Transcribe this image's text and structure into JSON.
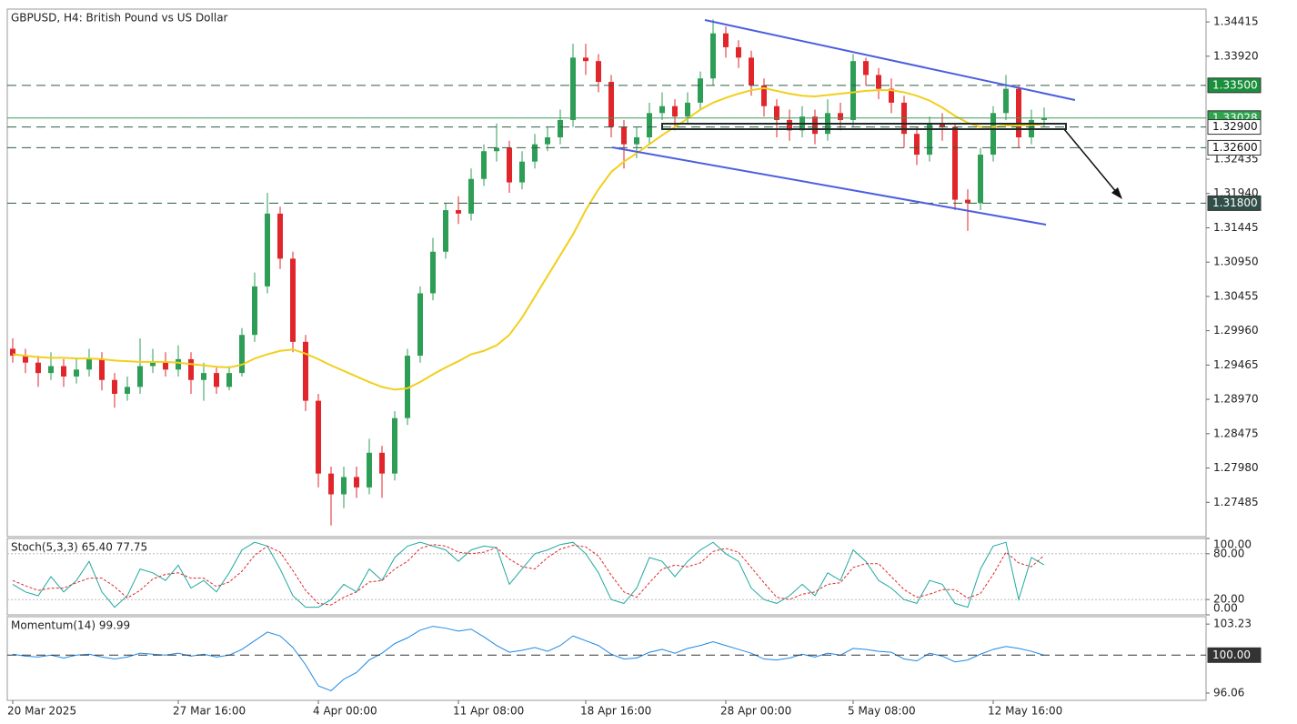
{
  "chart_data": [
    {
      "type": "candlestick",
      "title": "GBPUSD, H4:  British Pound vs US Dollar",
      "categories": [
        "20 Mar 2025",
        null,
        null,
        null,
        null,
        null,
        null,
        null,
        null,
        null,
        null,
        null,
        null,
        "27 Mar 16:00",
        null,
        null,
        null,
        null,
        null,
        null,
        null,
        null,
        null,
        null,
        "4 Apr 00:00",
        null,
        null,
        null,
        null,
        null,
        null,
        null,
        null,
        null,
        null,
        "11 Apr 08:00",
        null,
        null,
        null,
        null,
        null,
        null,
        null,
        null,
        null,
        "18 Apr 16:00",
        null,
        null,
        null,
        null,
        null,
        null,
        null,
        null,
        null,
        null,
        "28 Apr 00:00",
        null,
        null,
        null,
        null,
        null,
        null,
        null,
        null,
        null,
        "5 May 08:00",
        null,
        null,
        null,
        null,
        null,
        null,
        null,
        null,
        null,
        null,
        "12 May 16:00",
        null,
        null,
        null,
        null
      ],
      "open": [
        1.297,
        1.296,
        1.295,
        1.2935,
        1.2945,
        1.293,
        1.294,
        1.2955,
        1.2925,
        1.2905,
        1.2915,
        1.2945,
        1.295,
        1.294,
        1.2955,
        1.2925,
        1.2935,
        1.2915,
        1.2935,
        1.299,
        1.306,
        1.3165,
        1.31,
        1.298,
        1.2895,
        1.279,
        1.276,
        1.2785,
        1.277,
        1.282,
        1.279,
        1.287,
        1.296,
        1.305,
        1.311,
        1.317,
        1.3165,
        1.3215,
        1.3255,
        1.326,
        1.321,
        1.324,
        1.3265,
        1.3275,
        1.33,
        1.339,
        1.3385,
        1.3355,
        1.329,
        1.3265,
        1.3275,
        1.331,
        1.332,
        1.3305,
        1.3325,
        1.336,
        1.3425,
        1.3405,
        1.339,
        1.335,
        1.332,
        1.33,
        1.3285,
        1.3305,
        1.328,
        1.331,
        1.33,
        1.3385,
        1.3365,
        1.3345,
        1.3325,
        1.328,
        1.325,
        1.3295,
        1.329,
        1.3185,
        1.318,
        1.325,
        1.331,
        1.3345,
        1.3275,
        1.33
      ],
      "high": [
        1.2985,
        1.297,
        1.296,
        1.2965,
        1.2955,
        1.2955,
        1.297,
        1.2965,
        1.2935,
        1.293,
        1.2985,
        1.297,
        1.2965,
        1.2975,
        1.2965,
        1.295,
        1.2945,
        1.2945,
        1.3,
        1.308,
        1.3195,
        1.3175,
        1.311,
        1.299,
        1.2905,
        1.28,
        1.28,
        1.28,
        1.284,
        1.283,
        1.288,
        1.297,
        1.306,
        1.313,
        1.318,
        1.319,
        1.323,
        1.3265,
        1.3295,
        1.327,
        1.3255,
        1.328,
        1.329,
        1.3315,
        1.341,
        1.341,
        1.3395,
        1.3365,
        1.33,
        1.329,
        1.3325,
        1.334,
        1.333,
        1.334,
        1.337,
        1.3445,
        1.3435,
        1.3415,
        1.34,
        1.336,
        1.333,
        1.3315,
        1.332,
        1.3315,
        1.333,
        1.3325,
        1.3395,
        1.339,
        1.3375,
        1.336,
        1.3335,
        1.329,
        1.3305,
        1.331,
        1.3295,
        1.32,
        1.326,
        1.332,
        1.3365,
        1.335,
        1.3315,
        1.3318
      ],
      "low": [
        1.295,
        1.2935,
        1.2915,
        1.2925,
        1.2915,
        1.292,
        1.293,
        1.291,
        1.2885,
        1.2895,
        1.2905,
        1.2935,
        1.293,
        1.293,
        1.2905,
        1.2895,
        1.2905,
        1.291,
        1.293,
        1.298,
        1.305,
        1.3085,
        1.2965,
        1.288,
        1.277,
        1.2715,
        1.274,
        1.2755,
        1.276,
        1.2755,
        1.278,
        1.286,
        1.295,
        1.304,
        1.31,
        1.315,
        1.3155,
        1.3205,
        1.324,
        1.3195,
        1.32,
        1.323,
        1.3255,
        1.3265,
        1.329,
        1.3365,
        1.334,
        1.3275,
        1.323,
        1.3245,
        1.3265,
        1.33,
        1.3285,
        1.3295,
        1.3315,
        1.335,
        1.339,
        1.3375,
        1.3335,
        1.3305,
        1.3275,
        1.327,
        1.3275,
        1.3265,
        1.327,
        1.3285,
        1.329,
        1.335,
        1.333,
        1.331,
        1.326,
        1.3235,
        1.324,
        1.327,
        1.317,
        1.314,
        1.317,
        1.324,
        1.33,
        1.326,
        1.3265,
        1.329
      ],
      "close": [
        1.296,
        1.295,
        1.2935,
        1.2945,
        1.293,
        1.294,
        1.2955,
        1.2925,
        1.2905,
        1.2915,
        1.2945,
        1.295,
        1.294,
        1.2955,
        1.2925,
        1.2935,
        1.2915,
        1.2935,
        1.299,
        1.306,
        1.3165,
        1.31,
        1.298,
        1.2895,
        1.279,
        1.276,
        1.2785,
        1.277,
        1.282,
        1.279,
        1.287,
        1.296,
        1.305,
        1.311,
        1.317,
        1.3165,
        1.3215,
        1.3255,
        1.326,
        1.321,
        1.324,
        1.3265,
        1.3275,
        1.33,
        1.339,
        1.3385,
        1.3355,
        1.329,
        1.3265,
        1.3275,
        1.331,
        1.332,
        1.3305,
        1.3325,
        1.336,
        1.3425,
        1.3405,
        1.339,
        1.335,
        1.332,
        1.33,
        1.3285,
        1.3305,
        1.328,
        1.331,
        1.33,
        1.3385,
        1.3365,
        1.3345,
        1.3325,
        1.328,
        1.325,
        1.3295,
        1.329,
        1.3185,
        1.318,
        1.325,
        1.331,
        1.3345,
        1.3275,
        1.33,
        1.3303
      ],
      "up_color": "#2e9e56",
      "down_color": "#e0262b",
      "overlay": {
        "color": "#f2cf1d",
        "values": [
          1.2962,
          1.296,
          1.2958,
          1.2957,
          1.2957,
          1.2956,
          1.2956,
          1.2955,
          1.2953,
          1.2952,
          1.2951,
          1.2951,
          1.2951,
          1.295,
          1.2948,
          1.2946,
          1.2944,
          1.2943,
          1.2947,
          1.2956,
          1.2962,
          1.2967,
          1.2969,
          1.2963,
          1.2955,
          1.2946,
          1.2938,
          1.293,
          1.2922,
          1.2915,
          1.2911,
          1.2913,
          1.2922,
          1.2933,
          1.2943,
          1.2952,
          1.2962,
          1.2967,
          1.2975,
          1.299,
          1.3015,
          1.3045,
          1.3075,
          1.3105,
          1.3135,
          1.317,
          1.32,
          1.3225,
          1.324,
          1.3252,
          1.3265,
          1.3278,
          1.329,
          1.3302,
          1.3315,
          1.3325,
          1.3332,
          1.3338,
          1.3343,
          1.3346,
          1.3342,
          1.3338,
          1.3335,
          1.3334,
          1.3336,
          1.3338,
          1.334,
          1.3342,
          1.3343,
          1.3343,
          1.334,
          1.3335,
          1.3328,
          1.3318,
          1.3306,
          1.3296,
          1.329,
          1.329,
          1.3292,
          1.3292,
          1.3293,
          1.3294
        ]
      },
      "ylim": [
        1.2699,
        1.346
      ],
      "yticks": [
        {
          "value": 1.34415,
          "label": "1.34415"
        },
        {
          "value": 1.3392,
          "label": "1.33920"
        },
        {
          "value": 1.32435,
          "label": "1.32435"
        },
        {
          "value": 1.3194,
          "label": "1.31940"
        },
        {
          "value": 1.31445,
          "label": "1.31445"
        },
        {
          "value": 1.3095,
          "label": "1.30950"
        },
        {
          "value": 1.30455,
          "label": "1.30455"
        },
        {
          "value": 1.2996,
          "label": "1.29960"
        },
        {
          "value": 1.29465,
          "label": "1.29465"
        },
        {
          "value": 1.2897,
          "label": "1.28970"
        },
        {
          "value": 1.28475,
          "label": "1.28475"
        },
        {
          "value": 1.2798,
          "label": "1.27980"
        },
        {
          "value": 1.27485,
          "label": "1.27485"
        }
      ],
      "grid": false,
      "levels": [
        {
          "value": 1.33028,
          "label": "1.33028",
          "style": "solid",
          "color": "#3a9a5a",
          "label_bg": "#2ea44f",
          "label_color": "#ffffff"
        },
        {
          "value": 1.335,
          "label": "1.33500",
          "style": "dashed",
          "color": "#2f5e44",
          "label_bg": "#1a8f3c",
          "label_color": "#ffffff"
        },
        {
          "value": 1.329,
          "label": "1.32900",
          "style": "dashed",
          "color": "#2f5e44",
          "label_bg": "#ffffff",
          "label_color": "#111111"
        },
        {
          "value": 1.326,
          "label": "1.32600",
          "style": "dashed",
          "color": "#2f5e44",
          "label_bg": "#ffffff",
          "label_color": "#111111"
        },
        {
          "value": 1.318,
          "label": "1.31800",
          "style": "dashed",
          "color": "#2f5e44",
          "label_bg": "#2f4f48",
          "label_color": "#ffffff"
        }
      ]
    },
    {
      "type": "line",
      "title": "Stoch(5,3,3) 65.40 77.75",
      "series": [
        {
          "color": "#20a8a0",
          "dash": false,
          "values": [
            40,
            30,
            25,
            50,
            30,
            45,
            70,
            30,
            10,
            25,
            60,
            55,
            45,
            65,
            35,
            45,
            30,
            55,
            85,
            95,
            90,
            60,
            25,
            10,
            10,
            20,
            40,
            30,
            60,
            45,
            75,
            90,
            95,
            90,
            85,
            70,
            85,
            90,
            88,
            40,
            60,
            80,
            85,
            92,
            95,
            80,
            55,
            20,
            15,
            35,
            75,
            70,
            50,
            70,
            85,
            95,
            80,
            70,
            35,
            20,
            15,
            25,
            40,
            25,
            55,
            45,
            85,
            70,
            45,
            35,
            20,
            15,
            45,
            40,
            15,
            10,
            60,
            90,
            95,
            20,
            75,
            65.4
          ]
        },
        {
          "color": "#e0262b",
          "dash": true,
          "values": [
            45,
            38,
            32,
            35,
            35,
            42,
            48,
            48,
            37,
            22,
            32,
            47,
            53,
            55,
            48,
            48,
            37,
            43,
            57,
            78,
            90,
            82,
            58,
            32,
            15,
            13,
            23,
            30,
            43,
            45,
            60,
            70,
            87,
            92,
            90,
            82,
            80,
            82,
            88,
            73,
            63,
            60,
            75,
            86,
            91,
            89,
            77,
            52,
            30,
            23,
            42,
            60,
            65,
            63,
            68,
            83,
            87,
            82,
            62,
            42,
            23,
            20,
            27,
            30,
            40,
            42,
            62,
            67,
            67,
            50,
            33,
            23,
            27,
            33,
            33,
            22,
            28,
            53,
            82,
            68,
            63,
            77.75
          ]
        }
      ],
      "ylim": [
        0,
        100
      ],
      "yticks": [
        {
          "value": 100,
          "label": "100.00"
        },
        {
          "value": 80,
          "label": "80.00"
        },
        {
          "value": 20,
          "label": "20.00"
        },
        {
          "value": 0,
          "label": "0.00"
        }
      ],
      "grid": true
    },
    {
      "type": "line",
      "title": "Momentum(14) 99.99",
      "series": [
        {
          "color": "#1e88e5",
          "dash": false,
          "values": [
            100.1,
            99.9,
            99.8,
            100.0,
            99.7,
            100.0,
            100.1,
            99.8,
            99.6,
            99.8,
            100.2,
            100.1,
            100.0,
            100.2,
            99.9,
            100.1,
            99.8,
            100.0,
            100.6,
            101.5,
            102.4,
            102.0,
            100.8,
            99.0,
            96.8,
            96.3,
            97.5,
            98.2,
            99.5,
            100.2,
            101.2,
            101.8,
            102.6,
            103.0,
            102.8,
            102.5,
            102.7,
            101.9,
            101.0,
            100.3,
            100.5,
            100.8,
            100.4,
            101.0,
            102.0,
            101.5,
            101.0,
            100.1,
            99.6,
            99.7,
            100.3,
            100.6,
            100.2,
            100.7,
            101.0,
            101.4,
            101.0,
            100.6,
            100.2,
            99.6,
            99.5,
            99.7,
            100.1,
            99.8,
            100.2,
            100.0,
            100.7,
            100.6,
            100.4,
            100.3,
            99.6,
            99.4,
            100.2,
            99.9,
            99.3,
            99.5,
            100.1,
            100.6,
            100.9,
            100.7,
            100.4,
            99.99
          ]
        }
      ],
      "ylim": [
        95.3,
        104.0
      ],
      "yticks": [
        103.23,
        96.06
      ],
      "grid": false,
      "levels": [
        {
          "value": 100,
          "label": "100.00",
          "style": "dashed",
          "color": "#333333",
          "label_bg": "#333333",
          "label_color": "#ffffff"
        }
      ]
    }
  ]
}
